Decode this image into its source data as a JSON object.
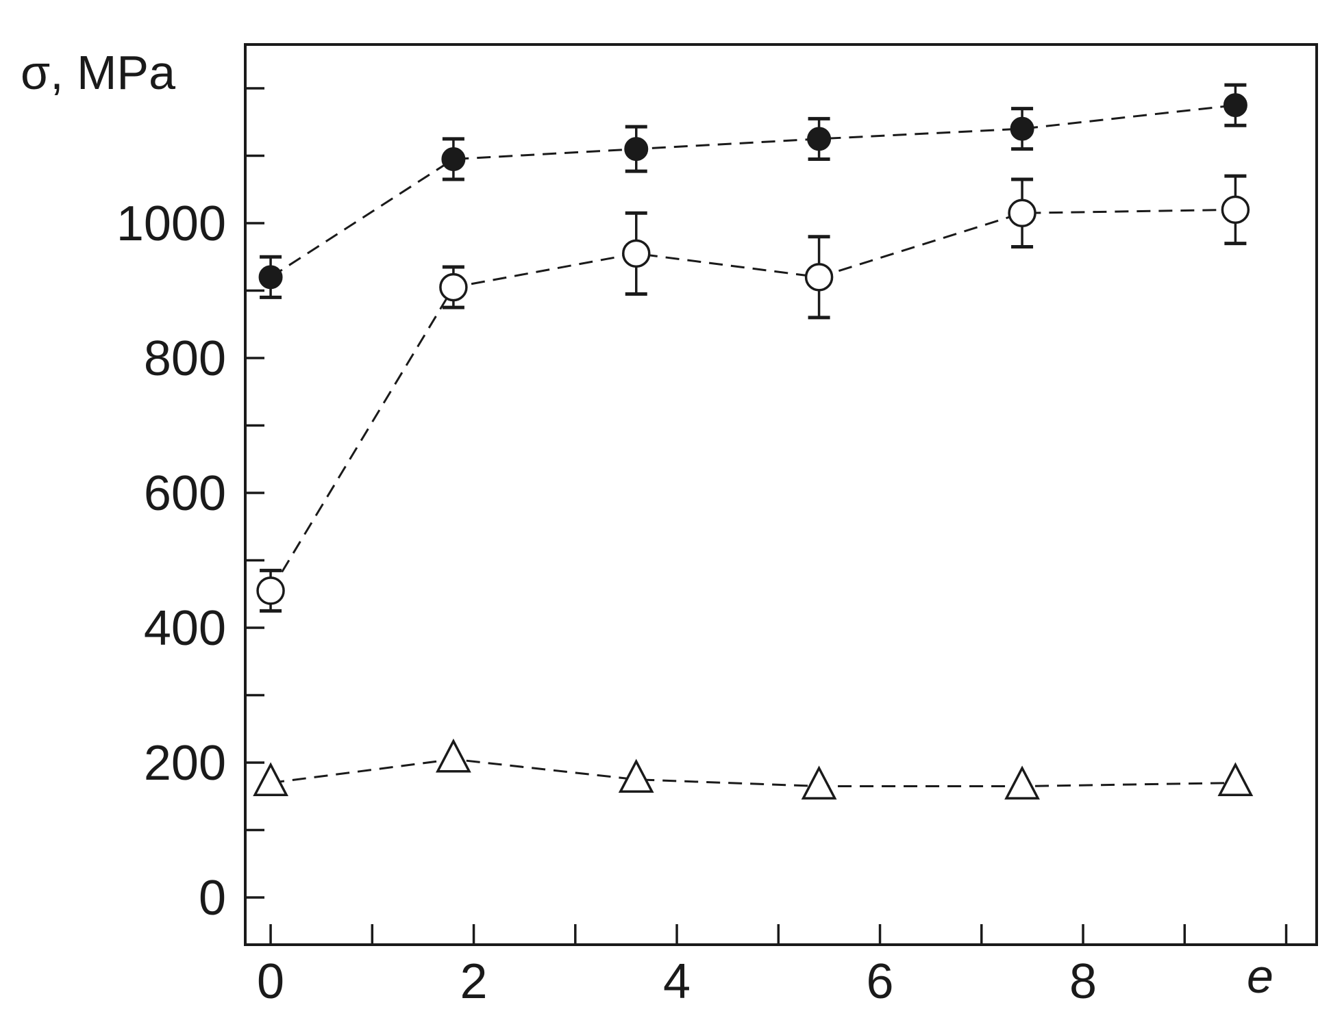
{
  "chart_data": {
    "type": "scatter",
    "title": "",
    "xlabel": "e",
    "ylabel": "σ, MPa",
    "xlim": [
      -0.25,
      10.3
    ],
    "ylim": [
      -70,
      1265
    ],
    "x_ticks_major": [
      0,
      2,
      4,
      6,
      8
    ],
    "x_ticks_minor": [
      1,
      3,
      5,
      7,
      9,
      10
    ],
    "y_ticks_major": [
      0,
      200,
      400,
      600,
      800,
      1000
    ],
    "y_ticks_minor": [
      100,
      300,
      500,
      700,
      900,
      1100,
      1200
    ],
    "grid": false,
    "legend": "none",
    "series": [
      {
        "marker": "filled-circle",
        "line": "dashed",
        "x": [
          0,
          1.8,
          3.6,
          5.4,
          7.4,
          9.5
        ],
        "y": [
          920,
          1095,
          1110,
          1125,
          1140,
          1175
        ],
        "err": [
          30,
          30,
          33,
          30,
          30,
          30
        ]
      },
      {
        "marker": "open-circle",
        "line": "dashed",
        "x": [
          0,
          1.8,
          3.6,
          5.4,
          7.4,
          9.5
        ],
        "y": [
          455,
          905,
          955,
          920,
          1015,
          1020
        ],
        "err": [
          30,
          30,
          60,
          60,
          50,
          50
        ]
      },
      {
        "marker": "open-triangle",
        "line": "dashed",
        "x": [
          0,
          1.8,
          3.6,
          5.4,
          7.4,
          9.5
        ],
        "y": [
          170,
          205,
          175,
          165,
          165,
          170
        ],
        "err": null
      }
    ],
    "colors": {
      "ink": "#1a1a1a",
      "background": "#ffffff"
    }
  }
}
